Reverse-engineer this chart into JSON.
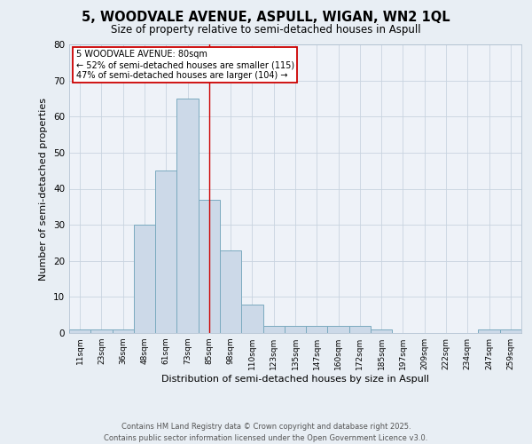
{
  "title": "5, WOODVALE AVENUE, ASPULL, WIGAN, WN2 1QL",
  "subtitle": "Size of property relative to semi-detached houses in Aspull",
  "xlabel": "Distribution of semi-detached houses by size in Aspull",
  "ylabel": "Number of semi-detached properties",
  "annotation_line1": "5 WOODVALE AVENUE: 80sqm",
  "annotation_line2": "← 52% of semi-detached houses are smaller (115)",
  "annotation_line3": "47% of semi-detached houses are larger (104) →",
  "footer_line1": "Contains HM Land Registry data © Crown copyright and database right 2025.",
  "footer_line2": "Contains public sector information licensed under the Open Government Licence v3.0.",
  "bar_labels": [
    "11sqm",
    "23sqm",
    "36sqm",
    "48sqm",
    "61sqm",
    "73sqm",
    "85sqm",
    "98sqm",
    "110sqm",
    "123sqm",
    "135sqm",
    "147sqm",
    "160sqm",
    "172sqm",
    "185sqm",
    "197sqm",
    "209sqm",
    "222sqm",
    "234sqm",
    "247sqm",
    "259sqm"
  ],
  "bar_heights": [
    1,
    1,
    1,
    30,
    45,
    65,
    37,
    23,
    8,
    2,
    2,
    2,
    2,
    2,
    1,
    0,
    0,
    0,
    0,
    1,
    1
  ],
  "bar_color": "#ccd9e8",
  "bar_edge_color": "#7aaabf",
  "grid_color": "#c8d4e0",
  "vline_x_index": 6,
  "vline_color": "#cc0000",
  "annotation_box_color": "#cc0000",
  "ylim": [
    0,
    80
  ],
  "yticks": [
    0,
    10,
    20,
    30,
    40,
    50,
    60,
    70,
    80
  ],
  "background_color": "#e8eef4",
  "plot_bg_color": "#eef2f8"
}
